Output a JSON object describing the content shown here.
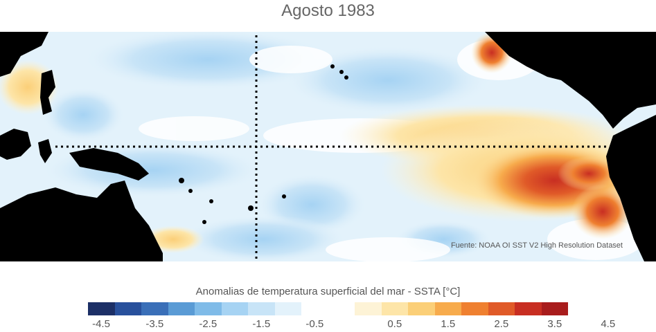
{
  "title": "Agosto 1983",
  "source": "Fuente: NOAA OI SST V2 High Resolution Dataset",
  "colorbar": {
    "title": "Anomalias de temperatura superficial del mar - SSTA  [°C]",
    "ticks": [
      "-4.5",
      "-3.5",
      "-2.5",
      "-1.5",
      "-0.5",
      "0.5",
      "1.5",
      "2.5",
      "3.5",
      "4.5"
    ],
    "colors": [
      "#1c2f66",
      "#28509c",
      "#3a6fb8",
      "#5a9bd5",
      "#7fbbe8",
      "#a6d3f3",
      "#c8e4f7",
      "#e3f2fb",
      "#ffffff",
      "#ffffff",
      "#fdf3d6",
      "#fde5a8",
      "#fbcf78",
      "#f7ab4c",
      "#ef8030",
      "#e05a28",
      "#c82e22",
      "#a81c1c"
    ]
  },
  "colors": {
    "land": "#000000",
    "dotted_line": "#000000",
    "background": "#ffffff"
  }
}
